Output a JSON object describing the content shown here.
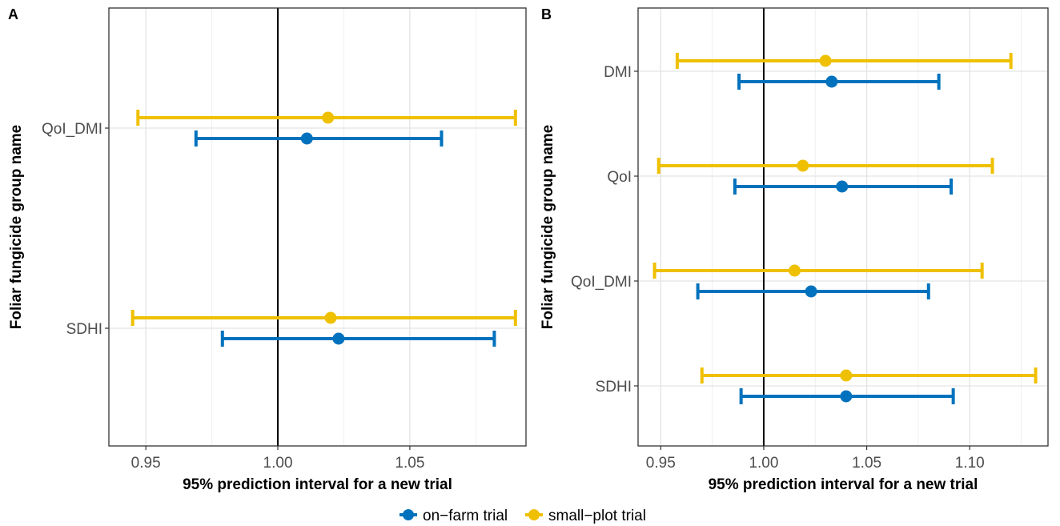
{
  "chart_data": [
    {
      "type": "errorbar",
      "panel_label": "A",
      "xlabel": "95% prediction interval for a new trial",
      "ylabel": "Foliar fungicide group name",
      "xlim": [
        0.936,
        1.094
      ],
      "x_ticks": [
        "0.95",
        "1.00",
        "1.05"
      ],
      "reference_line": 1.0,
      "grid": true,
      "categories": [
        "QoI_DMI",
        "SDHI"
      ],
      "series": [
        {
          "name": "on-farm trial",
          "color": "#0072BD",
          "points": [
            {
              "category": "QoI_DMI",
              "estimate": 1.011,
              "lower": 0.969,
              "upper": 1.062
            },
            {
              "category": "SDHI",
              "estimate": 1.023,
              "lower": 0.979,
              "upper": 1.082
            }
          ]
        },
        {
          "name": "small-plot trial",
          "color": "#EFC000",
          "points": [
            {
              "category": "QoI_DMI",
              "estimate": 1.019,
              "lower": 0.947,
              "upper": 1.09
            },
            {
              "category": "SDHI",
              "estimate": 1.02,
              "lower": 0.945,
              "upper": 1.09
            }
          ]
        }
      ]
    },
    {
      "type": "errorbar",
      "panel_label": "B",
      "xlabel": "95% prediction interval for a new trial",
      "ylabel": "Foliar fungicide group name",
      "xlim": [
        0.939,
        1.138
      ],
      "x_ticks": [
        "0.95",
        "1.00",
        "1.05",
        "1.10"
      ],
      "reference_line": 1.0,
      "grid": true,
      "categories": [
        "DMI",
        "QoI",
        "QoI_DMI",
        "SDHI"
      ],
      "series": [
        {
          "name": "on-farm trial",
          "color": "#0072BD",
          "points": [
            {
              "category": "DMI",
              "estimate": 1.033,
              "lower": 0.988,
              "upper": 1.085
            },
            {
              "category": "QoI",
              "estimate": 1.038,
              "lower": 0.986,
              "upper": 1.091
            },
            {
              "category": "QoI_DMI",
              "estimate": 1.023,
              "lower": 0.968,
              "upper": 1.08
            },
            {
              "category": "SDHI",
              "estimate": 1.04,
              "lower": 0.989,
              "upper": 1.092
            }
          ]
        },
        {
          "name": "small-plot trial",
          "color": "#EFC000",
          "points": [
            {
              "category": "DMI",
              "estimate": 1.03,
              "lower": 0.958,
              "upper": 1.12
            },
            {
              "category": "QoI",
              "estimate": 1.019,
              "lower": 0.949,
              "upper": 1.111
            },
            {
              "category": "QoI_DMI",
              "estimate": 1.015,
              "lower": 0.947,
              "upper": 1.106
            },
            {
              "category": "SDHI",
              "estimate": 1.04,
              "lower": 0.97,
              "upper": 1.132
            }
          ]
        }
      ]
    }
  ],
  "legend": {
    "position": "bottom",
    "items": [
      {
        "label": "on−farm trial",
        "color": "#0072BD"
      },
      {
        "label": "small−plot trial",
        "color": "#EFC000"
      }
    ]
  }
}
